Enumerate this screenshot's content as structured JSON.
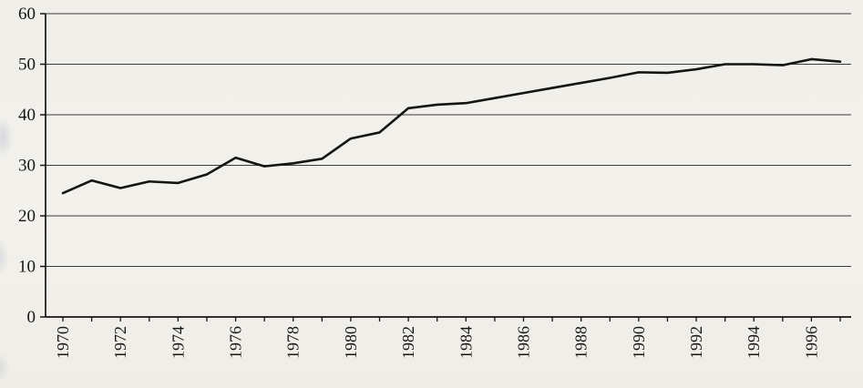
{
  "chart_data": {
    "type": "line",
    "title": "",
    "xlabel": "",
    "ylabel": "",
    "x": [
      1970,
      1971,
      1972,
      1973,
      1974,
      1975,
      1976,
      1977,
      1978,
      1979,
      1980,
      1981,
      1982,
      1983,
      1984,
      1985,
      1986,
      1987,
      1988,
      1989,
      1990,
      1991,
      1992,
      1993,
      1994,
      1995,
      1996,
      1997
    ],
    "values": [
      24.5,
      27.0,
      25.5,
      26.8,
      26.5,
      28.2,
      31.5,
      29.8,
      30.4,
      31.3,
      35.3,
      36.5,
      41.3,
      42.0,
      42.3,
      43.3,
      44.3,
      45.3,
      46.3,
      47.3,
      48.4,
      48.3,
      49.0,
      50.0,
      50.0,
      49.8,
      51.0,
      50.5
    ],
    "ylim": [
      0,
      60
    ],
    "yticks": [
      0,
      10,
      20,
      30,
      40,
      50,
      60
    ],
    "xtick_labels": [
      "1970",
      "1972",
      "1974",
      "1976",
      "1978",
      "1980",
      "1982",
      "1984",
      "1986",
      "1988",
      "1990",
      "1992",
      "1994",
      "1996"
    ],
    "xtick_label_every": 2,
    "grid": true,
    "legend": "none",
    "line_color": "#141414",
    "grid_color": "#3c3c3c",
    "axis_color": "#161616"
  }
}
